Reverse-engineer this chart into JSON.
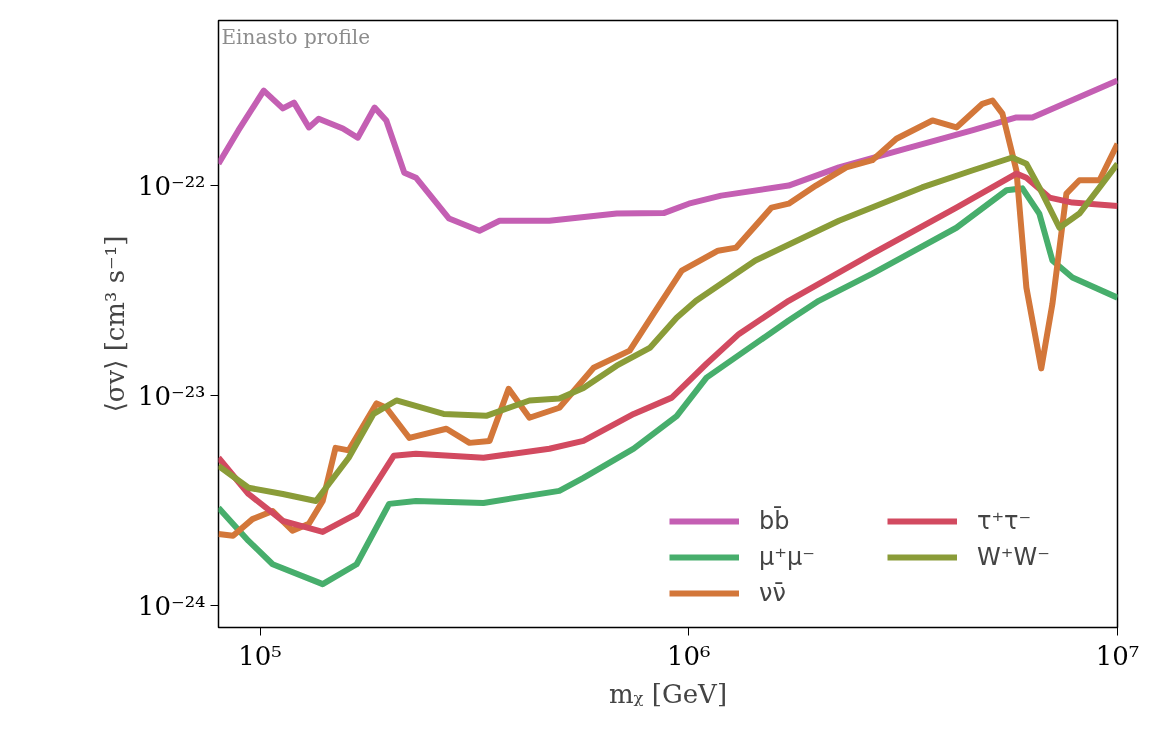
{
  "chart_data": {
    "type": "line",
    "xlabel": "mᵪ [GeV]",
    "ylabel": "⟨σv⟩ [cm³ s⁻¹]",
    "annotations": [
      "Einasto profile"
    ],
    "log": "xy",
    "grid": false,
    "legend": "bottom right",
    "marker": "none",
    "line_style": "solid",
    "xlim": [
      80000,
      10000000
    ],
    "ylim": [
      7.9e-25,
      6.1e-22
    ],
    "xticks": [
      {
        "value": 100000,
        "label": "10⁵"
      },
      {
        "value": 1000000,
        "label": "10⁶"
      },
      {
        "value": 10000000,
        "label": "10⁷"
      }
    ],
    "yticks": [
      {
        "value": 1e-24,
        "label": "10⁻²⁴"
      },
      {
        "value": 1e-23,
        "label": "10⁻²³"
      },
      {
        "value": 1e-22,
        "label": "10⁻²²"
      }
    ],
    "series": [
      {
        "name": "bb̄",
        "color": "#c45fb3",
        "x": [
          80000,
          89000,
          102000,
          113000,
          120000,
          130000,
          137000,
          156000,
          169000,
          185000,
          197000,
          217000,
          231000,
          276000,
          325000,
          362000,
          473000,
          679000,
          874000,
          1000000,
          1190000,
          1710000,
          2240000,
          3210000,
          4580000,
          5810000,
          6330000,
          10000000
        ],
        "values": [
          1.27e-22,
          1.83e-22,
          2.83e-22,
          2.33e-22,
          2.48e-22,
          1.89e-22,
          2.08e-22,
          1.87e-22,
          1.69e-22,
          2.35e-22,
          2.04e-22,
          1.15e-22,
          1.09e-22,
          6.97e-23,
          6.1e-23,
          6.8e-23,
          6.8e-23,
          7.36e-23,
          7.4e-23,
          8.2e-23,
          8.96e-23,
          1e-22,
          1.22e-22,
          1.5e-22,
          1.83e-22,
          2.11e-22,
          2.11e-22,
          3.16e-22
        ]
      },
      {
        "name": "μ⁺μ⁻",
        "color": "#47ae6c",
        "x": [
          80000,
          94000,
          107000,
          140000,
          168000,
          200000,
          231000,
          332000,
          499000,
          568000,
          744000,
          937000,
          1100000,
          1430000,
          1710000,
          2010000,
          2680000,
          4210000,
          5510000,
          6000000,
          6570000,
          7050000,
          7850000,
          10000000
        ],
        "values": [
          2.93e-24,
          2.04e-24,
          1.58e-24,
          1.27e-24,
          1.58e-24,
          3.06e-24,
          3.16e-24,
          3.09e-24,
          3.53e-24,
          4.07e-24,
          5.6e-24,
          8e-24,
          1.22e-23,
          1.77e-23,
          2.28e-23,
          2.83e-23,
          3.81e-23,
          6.3e-23,
          9.5e-23,
          9.7e-23,
          7.36e-23,
          4.4e-23,
          3.65e-23,
          2.93e-23
        ]
      },
      {
        "name": "νν̄",
        "color": "#d3773a",
        "x": [
          80000,
          86500,
          96000,
          107000,
          119000,
          130000,
          140000,
          150000,
          161000,
          187000,
          197000,
          223000,
          272000,
          308000,
          343000,
          380000,
          425000,
          499000,
          600000,
          728000,
          828000,
          963000,
          1170000,
          1290000,
          1560000,
          1710000,
          1980000,
          2330000,
          2680000,
          3050000,
          3700000,
          4210000,
          4840000,
          5110000,
          5390000,
          5810000,
          6130000,
          6640000,
          7050000,
          7600000,
          8150000,
          9080000,
          10000000
        ],
        "values": [
          2.2e-24,
          2.16e-24,
          2.59e-24,
          2.83e-24,
          2.28e-24,
          2.46e-24,
          3.16e-24,
          5.65e-24,
          5.5e-24,
          9.2e-24,
          8.77e-24,
          6.3e-24,
          6.97e-24,
          5.97e-24,
          6.1e-24,
          1.08e-23,
          7.86e-24,
          8.77e-24,
          1.36e-23,
          1.64e-23,
          2.46e-23,
          3.94e-23,
          4.9e-23,
          5.07e-23,
          7.86e-23,
          8.2e-23,
          1e-22,
          1.22e-22,
          1.32e-22,
          1.67e-22,
          2.04e-22,
          1.89e-22,
          2.45e-22,
          2.54e-22,
          2.2e-22,
          1.18e-22,
          3.27e-23,
          1.35e-23,
          2.74e-23,
          9.16e-23,
          1.06e-22,
          1.06e-22,
          1.58e-22
        ]
      },
      {
        "name": "τ⁺τ⁻",
        "color": "#d24a60",
        "x": [
          80000,
          94000,
          113000,
          140000,
          168000,
          205000,
          231000,
          332000,
          473000,
          568000,
          744000,
          913000,
          1100000,
          1310000,
          1710000,
          2680000,
          4210000,
          5810000,
          6130000,
          6940000,
          7850000,
          10000000
        ],
        "values": [
          5.07e-24,
          3.41e-24,
          2.54e-24,
          2.25e-24,
          2.74e-24,
          5.18e-24,
          5.3e-24,
          5.07e-24,
          5.6e-24,
          6.1e-24,
          8.2e-24,
          9.8e-24,
          1.42e-23,
          1.97e-23,
          2.83e-23,
          4.74e-23,
          7.86e-23,
          1.14e-22,
          1.09e-22,
          8.77e-23,
          8.3e-23,
          8e-23
        ]
      },
      {
        "name": "W⁺W⁻",
        "color": "#8a9c38",
        "x": [
          80000,
          94000,
          113000,
          135000,
          161000,
          184000,
          208000,
          268000,
          337000,
          425000,
          499000,
          568000,
          679000,
          811000,
          937000,
          1040000,
          1430000,
          2240000,
          3500000,
          4580000,
          5680000,
          6130000,
          6570000,
          7320000,
          8150000,
          9080000,
          10000000
        ],
        "values": [
          4.64e-24,
          3.65e-24,
          3.41e-24,
          3.16e-24,
          5.07e-24,
          8.2e-24,
          9.5e-24,
          8.2e-24,
          8.03e-24,
          9.5e-24,
          9.7e-24,
          1.09e-23,
          1.39e-23,
          1.69e-23,
          2.35e-23,
          2.83e-23,
          4.4e-23,
          6.8e-23,
          9.8e-23,
          1.18e-22,
          1.36e-22,
          1.27e-22,
          9.8e-23,
          6.3e-23,
          7.36e-23,
          9.8e-23,
          1.27e-22
        ]
      }
    ]
  }
}
